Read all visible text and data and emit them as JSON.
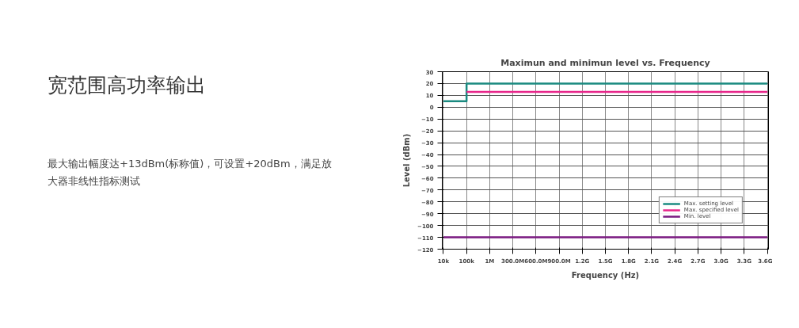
{
  "chart_data": {
    "type": "step",
    "title": "Maximun and minimun level vs. Frequency",
    "xlabel": "Frequency (Hz)",
    "ylabel": "Level (dBm)",
    "annotations": [
      "宽范围高功率输出",
      "最大输出幅度达+13dBm(标称值)，可设置+20dBm，满足放大器非线性指标测试"
    ],
    "categories": [
      "10k",
      "100k",
      "1M",
      "300.0M",
      "600.0M",
      "900.0M",
      "1.2G",
      "1.5G",
      "1.8G",
      "2.1G",
      "2.4G",
      "2.7G",
      "3.0G",
      "3.3G",
      "3.6G"
    ],
    "series": [
      {
        "name": "Max. setting level",
        "color": "#1a8a80",
        "values": [
          5,
          20,
          20,
          20,
          20,
          20,
          20,
          20,
          20,
          20,
          20,
          20,
          20,
          20,
          20
        ]
      },
      {
        "name": "Max. specified level",
        "color": "#e8268a",
        "values": [
          null,
          13,
          13,
          13,
          13,
          13,
          13,
          13,
          13,
          13,
          13,
          13,
          13,
          13,
          13
        ]
      },
      {
        "name": "Min. level",
        "color": "#7a1a80",
        "values": [
          -110,
          -110,
          -110,
          -110,
          -110,
          -110,
          -110,
          -110,
          -110,
          -110,
          -110,
          -110,
          -110,
          -110,
          -110
        ]
      }
    ],
    "ylim": [
      -120,
      30
    ],
    "yticks": [
      -120,
      -110,
      -100,
      -90,
      -80,
      -70,
      -60,
      -50,
      -40,
      -30,
      -20,
      -10,
      0,
      10,
      20,
      30
    ],
    "grid": true,
    "legend": "bottom right"
  }
}
